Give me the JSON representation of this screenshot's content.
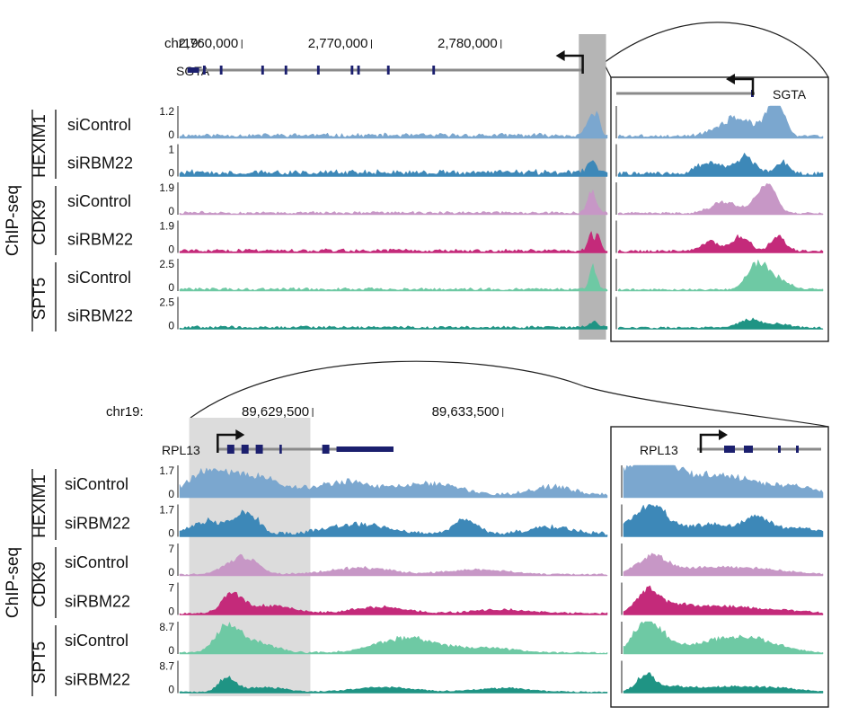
{
  "chart_data": [
    {
      "type": "area",
      "title": "",
      "assay_label": "ChIP-seq",
      "chrom": "chr19:",
      "ticks": [
        "2,760,000",
        "2,770,000",
        "2,780,000"
      ],
      "tick_values": [
        2760000,
        2770000,
        2780000
      ],
      "xlim": [
        2755200,
        2788200
      ],
      "gene": {
        "name": "SGTA",
        "strand": "-",
        "tss": 2786300,
        "start": 2755800,
        "end": 2786300,
        "exons": [
          [
            2755800,
            2756700
          ],
          [
            2757000,
            2757200
          ],
          [
            2758300,
            2758500
          ],
          [
            2761500,
            2761700
          ],
          [
            2763300,
            2763500
          ],
          [
            2765800,
            2766000
          ],
          [
            2768400,
            2768600
          ],
          [
            2768900,
            2769100
          ],
          [
            2771200,
            2771400
          ],
          [
            2774700,
            2774900
          ]
        ]
      },
      "highlight": [
        2786000,
        2788100
      ],
      "inset_gene_label": "SGTA",
      "groups": [
        "HEXIM1",
        "CDK9",
        "SPT5"
      ],
      "series": [
        {
          "name": "siControl",
          "group": "HEXIM1",
          "ymax": "1.2",
          "ymin": "0",
          "ymax_value": 1.2,
          "color": "#7ba7cf",
          "peaks": [
            [
              2787000,
              0.62,
              500
            ],
            [
              2787500,
              0.4,
              250
            ]
          ],
          "inset_peaks": [
            [
              0.58,
              0.55,
              0.12
            ],
            [
              0.75,
              0.75,
              0.05
            ],
            [
              0.8,
              0.55,
              0.04
            ]
          ],
          "noise": 0.09
        },
        {
          "name": "siRBM22",
          "group": "HEXIM1",
          "ymax": "1",
          "ymin": "0",
          "ymax_value": 1.0,
          "color": "#3d88b8",
          "peaks": [
            [
              2787000,
              0.45,
              450
            ]
          ],
          "inset_peaks": [
            [
              0.45,
              0.35,
              0.08
            ],
            [
              0.62,
              0.5,
              0.07
            ],
            [
              0.8,
              0.35,
              0.05
            ]
          ],
          "noise": 0.12
        },
        {
          "name": "siControl",
          "group": "CDK9",
          "ymax": "1.9",
          "ymin": "0",
          "ymax_value": 1.9,
          "color": "#c797c6",
          "peaks": [
            [
              2787000,
              0.7,
              450
            ]
          ],
          "inset_peaks": [
            [
              0.52,
              0.35,
              0.09
            ],
            [
              0.7,
              0.6,
              0.06
            ],
            [
              0.75,
              0.5,
              0.05
            ]
          ],
          "noise": 0.06
        },
        {
          "name": "siRBM22",
          "group": "CDK9",
          "ymax": "1.9",
          "ymin": "0",
          "ymax_value": 1.9,
          "color": "#c42a7a",
          "peaks": [
            [
              2786900,
              0.55,
              300
            ],
            [
              2787500,
              0.6,
              250
            ]
          ],
          "inset_peaks": [
            [
              0.45,
              0.3,
              0.06
            ],
            [
              0.6,
              0.45,
              0.06
            ],
            [
              0.78,
              0.45,
              0.05
            ]
          ],
          "noise": 0.07
        },
        {
          "name": "siControl",
          "group": "SPT5",
          "ymax": "2.5",
          "ymin": "0",
          "ymax_value": 2.5,
          "color": "#6ec9a4",
          "peaks": [
            [
              2787100,
              0.7,
              350
            ]
          ],
          "inset_peaks": [
            [
              0.68,
              0.75,
              0.07
            ],
            [
              0.78,
              0.3,
              0.08
            ]
          ],
          "noise": 0.06
        },
        {
          "name": "siRBM22",
          "group": "SPT5",
          "ymax": "2.5",
          "ymin": "0",
          "ymax_value": 2.5,
          "color": "#1f9484",
          "peaks": [
            [
              2787100,
              0.18,
              400
            ]
          ],
          "inset_peaks": [
            [
              0.65,
              0.25,
              0.08
            ],
            [
              0.8,
              0.12,
              0.06
            ]
          ],
          "noise": 0.06
        }
      ]
    },
    {
      "type": "area",
      "title": "",
      "assay_label": "ChIP-seq",
      "chrom": "chr19:",
      "ticks": [
        "89,629,500",
        "89,633,500"
      ],
      "tick_values": [
        89629500,
        89633500
      ],
      "xlim": [
        89626700,
        89635700
      ],
      "gene": {
        "name": "RPL13",
        "strand": "+",
        "tss": 89627500,
        "start": 89627500,
        "end": 89631200,
        "exons": [
          [
            89627700,
            89627850
          ],
          [
            89628000,
            89628150
          ],
          [
            89628300,
            89628450
          ],
          [
            89628800,
            89628850
          ],
          [
            89629700,
            89629850
          ],
          [
            89630000,
            89631200
          ]
        ]
      },
      "highlight": [
        89626900,
        89629450
      ],
      "inset_gene_label": "RPL13",
      "groups": [
        "HEXIM1",
        "CDK9",
        "SPT5"
      ],
      "series": [
        {
          "name": "siControl",
          "group": "HEXIM1",
          "ymax": "1.7",
          "ymin": "0",
          "ymax_value": 1.7,
          "color": "#7ba7cf",
          "peaks": [
            [
              89627300,
              0.7,
              600
            ],
            [
              89628300,
              0.55,
              700
            ],
            [
              89630200,
              0.4,
              900
            ],
            [
              89632000,
              0.35,
              800
            ],
            [
              89634500,
              0.25,
              600
            ]
          ],
          "noise": 0.08
        },
        {
          "name": "siRBM22",
          "group": "HEXIM1",
          "ymax": "1.7",
          "ymin": "0",
          "ymax_value": 1.7,
          "color": "#3d88b8",
          "peaks": [
            [
              89627300,
              0.4,
              500
            ],
            [
              89628100,
              0.65,
              350
            ],
            [
              89630500,
              0.3,
              900
            ],
            [
              89632700,
              0.45,
              350
            ],
            [
              89634500,
              0.2,
              700
            ]
          ],
          "noise": 0.08
        },
        {
          "name": "siControl",
          "group": "CDK9",
          "ymax": "7",
          "ymin": "0",
          "ymax_value": 7.0,
          "color": "#c797c6",
          "peaks": [
            [
              89628000,
              0.55,
              450
            ],
            [
              89630500,
              0.2,
              900
            ],
            [
              89633000,
              0.15,
              900
            ]
          ],
          "noise": 0.04
        },
        {
          "name": "siRBM22",
          "group": "CDK9",
          "ymax": "7",
          "ymin": "0",
          "ymax_value": 7.0,
          "color": "#c42a7a",
          "peaks": [
            [
              89627800,
              0.55,
              300
            ],
            [
              89628600,
              0.25,
              700
            ],
            [
              89630900,
              0.2,
              800
            ],
            [
              89633500,
              0.12,
              900
            ]
          ],
          "noise": 0.04
        },
        {
          "name": "siControl",
          "group": "SPT5",
          "ymax": "8.7",
          "ymin": "0",
          "ymax_value": 8.7,
          "color": "#6ec9a4",
          "peaks": [
            [
              89627700,
              0.8,
              350
            ],
            [
              89628300,
              0.35,
              500
            ],
            [
              89631500,
              0.45,
              900
            ],
            [
              89633200,
              0.15,
              700
            ]
          ],
          "noise": 0.04
        },
        {
          "name": "siRBM22",
          "group": "SPT5",
          "ymax": "8.7",
          "ymin": "0",
          "ymax_value": 8.7,
          "color": "#1f9484",
          "peaks": [
            [
              89627700,
              0.45,
              250
            ],
            [
              89628500,
              0.15,
              600
            ],
            [
              89631000,
              0.15,
              900
            ],
            [
              89633500,
              0.12,
              800
            ]
          ],
          "noise": 0.03
        }
      ]
    }
  ]
}
